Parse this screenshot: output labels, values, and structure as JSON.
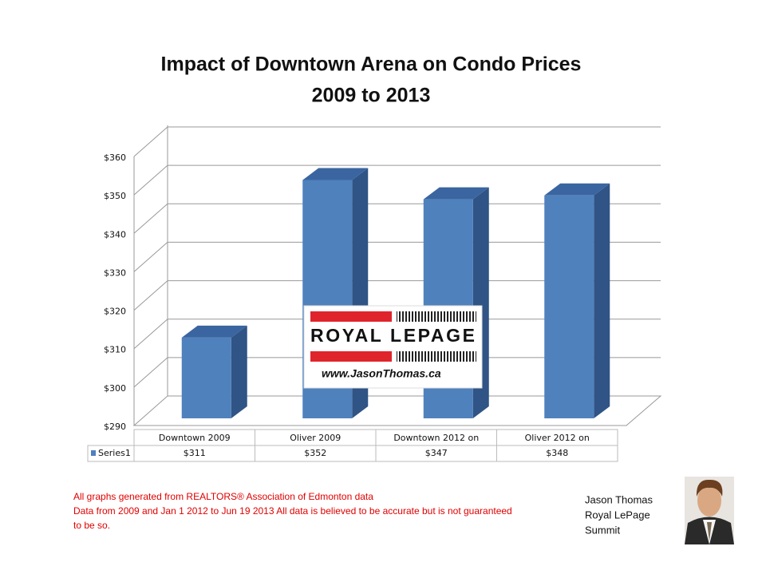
{
  "chart_data": {
    "type": "bar3d",
    "title": "Impact of Downtown Arena on Condo Prices",
    "subtitle": "2009 to 2013",
    "categories": [
      "Downtown 2009",
      "Oliver 2009",
      "Downtown 2012 on",
      "Oliver 2012 on"
    ],
    "series": [
      {
        "name": "Series1",
        "color": "#4f81bd",
        "values": [
          311,
          352,
          347,
          348
        ],
        "value_labels": [
          "$311",
          "$352",
          "$347",
          "$348"
        ]
      }
    ],
    "ylim": [
      290,
      360
    ],
    "yticks": [
      {
        "value": 290,
        "label": "$290"
      },
      {
        "value": 300,
        "label": "$300"
      },
      {
        "value": 310,
        "label": "$310"
      },
      {
        "value": 320,
        "label": "$320"
      },
      {
        "value": 330,
        "label": "$330"
      },
      {
        "value": 340,
        "label": "$340"
      },
      {
        "value": 350,
        "label": "$350"
      },
      {
        "value": 360,
        "label": "$360"
      }
    ],
    "grid": true
  },
  "logo": {
    "brand": "ROYAL LEPAGE",
    "url": "www.JasonThomas.ca"
  },
  "notes": [
    "All graphs generated from REALTORS® Association of Edmonton data",
    "Data from 2009  and  Jan 1 2012  to Jun 19 2013  All data is believed to be accurate but is not guaranteed",
    "to be so."
  ],
  "signature": [
    "Jason Thomas",
    "Royal LePage",
    "Summit"
  ]
}
